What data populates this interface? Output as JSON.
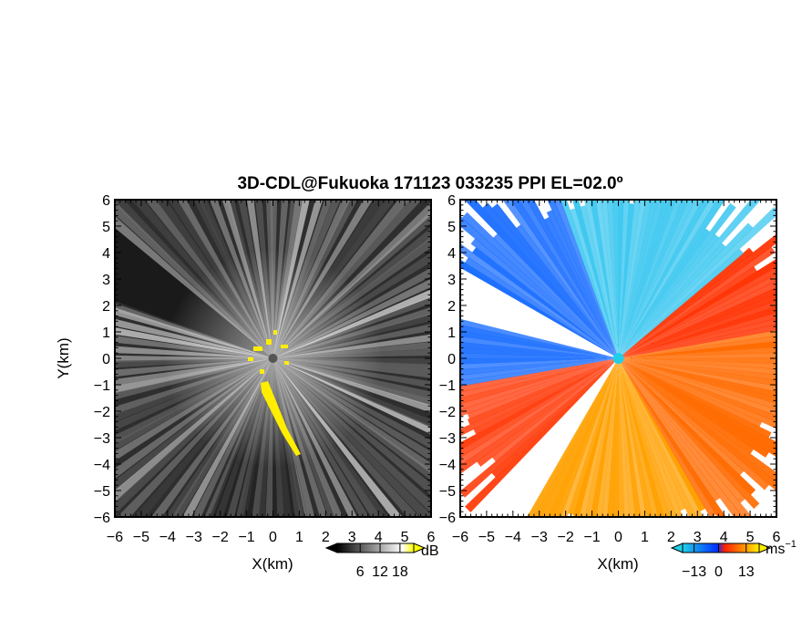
{
  "title": "3D-CDL@Fukuoka 171123 033235 PPI EL=02.0º",
  "chart_data": [
    {
      "type": "heatmap",
      "panel": "left",
      "quantity": "intensity",
      "xlabel": "X(km)",
      "ylabel": "Y(km)",
      "xlim": [
        -6,
        6
      ],
      "ylim": [
        -6,
        6
      ],
      "xticks": [
        "−6",
        "−5",
        "−4",
        "−3",
        "−2",
        "−1",
        "0",
        "1",
        "2",
        "3",
        "4",
        "5",
        "6"
      ],
      "yticks": [
        "6",
        "5",
        "4",
        "3",
        "2",
        "1",
        "0",
        "−1",
        "−2",
        "−3",
        "−4",
        "−5",
        "−6"
      ],
      "colorbar": {
        "ticks": [
          "6",
          "12",
          "18"
        ],
        "unit": "dB",
        "colors": [
          "#000000",
          "#ffffff",
          "#ffff00"
        ]
      }
    },
    {
      "type": "heatmap",
      "panel": "right",
      "quantity": "radial velocity",
      "xlabel": "X(km)",
      "xlim": [
        -6,
        6
      ],
      "ylim": [
        -6,
        6
      ],
      "xticks": [
        "−6",
        "−5",
        "−4",
        "−3",
        "−2",
        "−1",
        "0",
        "1",
        "2",
        "3",
        "4",
        "5",
        "6"
      ],
      "yticks": [
        "6",
        "5",
        "4",
        "3",
        "2",
        "1",
        "0",
        "−1",
        "−2",
        "−3",
        "−4",
        "−5",
        "−6"
      ],
      "colorbar": {
        "ticks": [
          "−13",
          "0",
          "13"
        ],
        "unit": "ms",
        "unit_sup": "−1",
        "colors": [
          "#20d0e8",
          "#0030ff",
          "#ff2000",
          "#ffee00"
        ]
      }
    }
  ]
}
